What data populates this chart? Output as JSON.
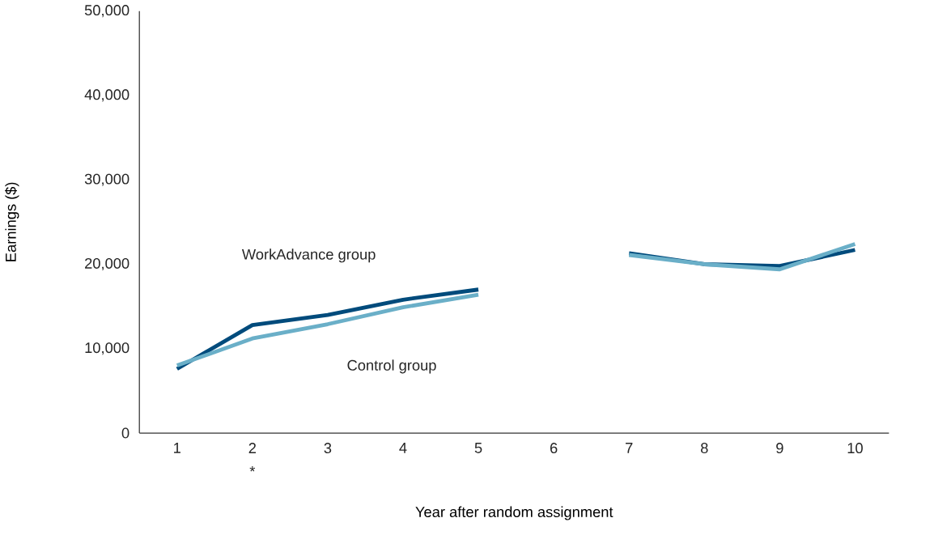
{
  "chart_data": {
    "type": "line",
    "xlabel": "Year after random assignment",
    "ylabel": "Earnings ($)",
    "categories": [
      "1",
      "2",
      "3",
      "4",
      "5",
      "6",
      "7",
      "8",
      "9",
      "10"
    ],
    "series": [
      {
        "name": "WorkAdvance group",
        "color": "#004b7c",
        "values": [
          7600,
          12800,
          14000,
          15800,
          17000,
          null,
          21300,
          20000,
          19800,
          21700
        ]
      },
      {
        "name": "Control group",
        "color": "#6aafc8",
        "values": [
          8000,
          11200,
          12900,
          14900,
          16400,
          null,
          21100,
          20000,
          19400,
          22400
        ]
      }
    ],
    "ylim": [
      0,
      50000
    ],
    "yticks": [
      {
        "value": 0,
        "label": "0"
      },
      {
        "value": 10000,
        "label": "10,000"
      },
      {
        "value": 20000,
        "label": "20,000"
      },
      {
        "value": 30000,
        "label": "30,000"
      },
      {
        "value": 40000,
        "label": "40,000"
      },
      {
        "value": 50000,
        "label": "50,000"
      }
    ],
    "annotations": [
      "*"
    ],
    "grid": false,
    "marker": "none",
    "line_style": "solid"
  }
}
